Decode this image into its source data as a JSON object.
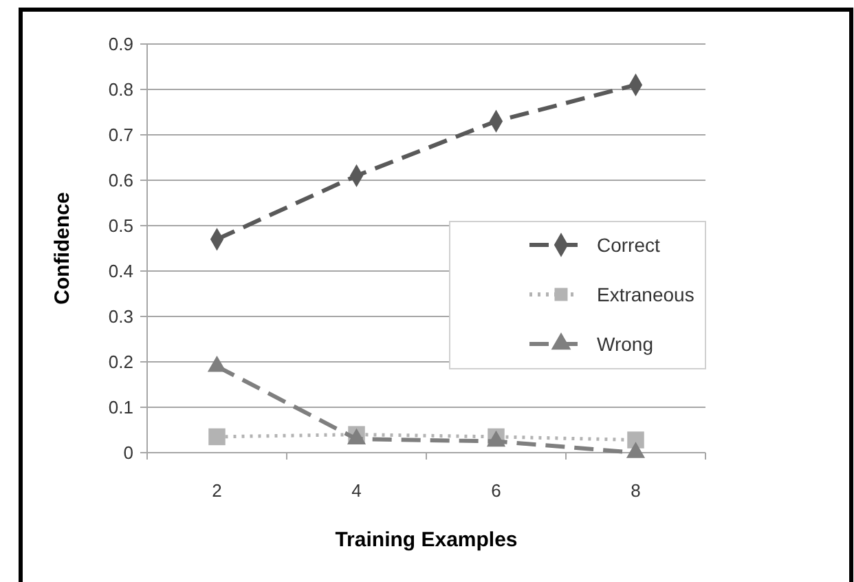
{
  "chart_data": {
    "type": "line",
    "xlabel": "Training Examples",
    "ylabel": "Confidence",
    "categories": [
      "2",
      "4",
      "6",
      "8"
    ],
    "ylim": [
      0,
      0.9
    ],
    "yticks": [
      0,
      0.1,
      0.2,
      0.3,
      0.4,
      0.5,
      0.6,
      0.7,
      0.8,
      0.9
    ],
    "grid": "y",
    "legend": "right",
    "series": [
      {
        "name": "Correct",
        "color": "#595959",
        "marker": "diamond",
        "line_style": "dashed",
        "values": [
          0.47,
          0.61,
          0.73,
          0.81
        ]
      },
      {
        "name": "Extraneous",
        "color": "#b3b3b3",
        "marker": "square",
        "line_style": "dotted",
        "values": [
          0.035,
          0.04,
          0.035,
          0.028
        ]
      },
      {
        "name": "Wrong",
        "color": "#7f7f7f",
        "marker": "triangle",
        "line_style": "dashed",
        "values": [
          0.19,
          0.03,
          0.025,
          0.0
        ]
      }
    ]
  }
}
